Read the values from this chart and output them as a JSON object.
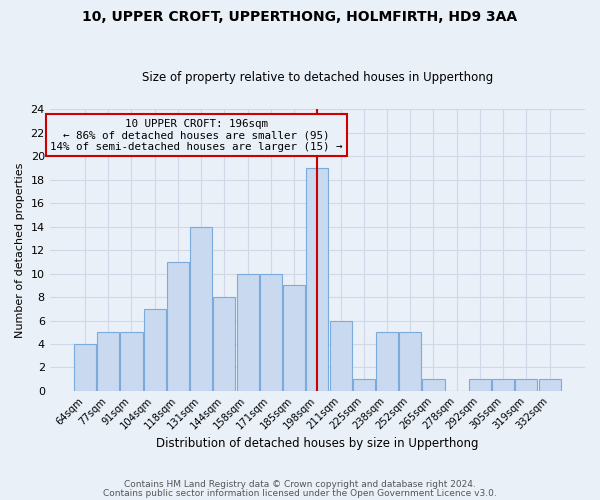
{
  "title1": "10, UPPER CROFT, UPPERTHONG, HOLMFIRTH, HD9 3AA",
  "title2": "Size of property relative to detached houses in Upperthong",
  "xlabel": "Distribution of detached houses by size in Upperthong",
  "ylabel": "Number of detached properties",
  "annotation_line1": "10 UPPER CROFT: 196sqm",
  "annotation_line2": "← 86% of detached houses are smaller (95)",
  "annotation_line3": "14% of semi-detached houses are larger (15) →",
  "categories": [
    "64sqm",
    "77sqm",
    "91sqm",
    "104sqm",
    "118sqm",
    "131sqm",
    "144sqm",
    "158sqm",
    "171sqm",
    "185sqm",
    "198sqm",
    "211sqm",
    "225sqm",
    "238sqm",
    "252sqm",
    "265sqm",
    "278sqm",
    "292sqm",
    "305sqm",
    "319sqm",
    "332sqm"
  ],
  "values": [
    4,
    5,
    5,
    7,
    11,
    14,
    8,
    10,
    10,
    9,
    19,
    6,
    1,
    5,
    5,
    1,
    0,
    1,
    1,
    1,
    1
  ],
  "bar_color": "#c9d9f0",
  "bar_edge_color": "#7aabdb",
  "vline_index": 10,
  "vline_color": "#cc0000",
  "annotation_box_edge_color": "#cc0000",
  "ylim": [
    0,
    24
  ],
  "yticks": [
    0,
    2,
    4,
    6,
    8,
    10,
    12,
    14,
    16,
    18,
    20,
    22,
    24
  ],
  "grid_color": "#d0d8e8",
  "bg_color": "#eaf0f8",
  "footer1": "Contains HM Land Registry data © Crown copyright and database right 2024.",
  "footer2": "Contains public sector information licensed under the Open Government Licence v3.0."
}
